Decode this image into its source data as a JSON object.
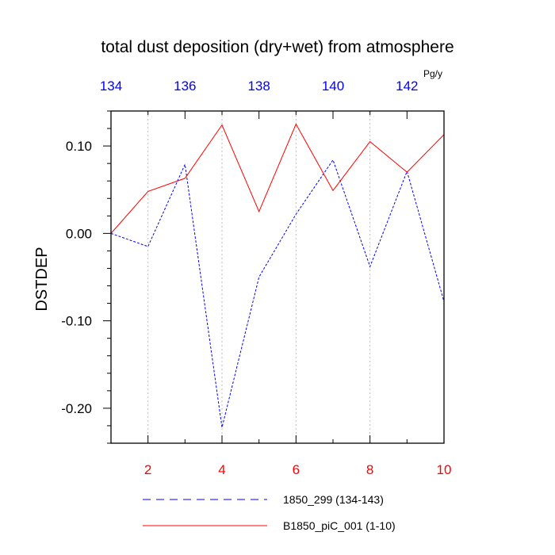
{
  "chart_data": {
    "type": "line",
    "title": "total dust deposition (dry+wet) from atmosphere",
    "units": "Pg/y",
    "ylabel": "DSTDEP",
    "ylim": [
      -0.24,
      0.14
    ],
    "yticks": [
      0.1,
      0.0,
      -0.1,
      -0.2
    ],
    "ytick_labels": [
      "0.10",
      "0.00",
      "-0.10",
      "-0.20"
    ],
    "xlim_bottom": [
      1,
      10
    ],
    "xticks_bottom": [
      2,
      4,
      6,
      8,
      10
    ],
    "xtick_labels_bottom": [
      "2",
      "4",
      "6",
      "8",
      "10"
    ],
    "xlim_top": [
      134,
      143
    ],
    "xticks_top": [
      134,
      136,
      138,
      140,
      142
    ],
    "xtick_labels_top": [
      "134",
      "136",
      "138",
      "140",
      "142"
    ],
    "bottom_axis_color": "#ff0000",
    "top_axis_color": "#0000ff",
    "grid": "vertical dotted at bottom major ticks",
    "legend_position": "bottom",
    "series": [
      {
        "name": "1850_299 (134-143)",
        "color": "#0000ff",
        "dash": "dashed",
        "x": [
          1,
          2,
          3,
          4,
          5,
          6,
          7,
          8,
          9,
          10
        ],
        "values": [
          0.0,
          -0.015,
          0.079,
          -0.222,
          -0.05,
          0.022,
          0.084,
          -0.038,
          0.071,
          -0.078
        ]
      },
      {
        "name": "B1850_piC_001 (1-10)",
        "color": "#ff0000",
        "dash": "solid",
        "x": [
          1,
          2,
          3,
          4,
          5,
          6,
          7,
          8,
          9,
          10
        ],
        "values": [
          0.0,
          0.048,
          0.063,
          0.124,
          0.025,
          0.125,
          0.049,
          0.105,
          0.07,
          0.113
        ]
      }
    ]
  }
}
